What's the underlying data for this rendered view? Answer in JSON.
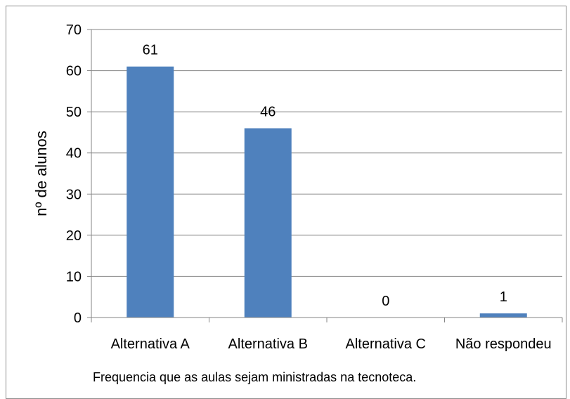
{
  "chart_data": {
    "type": "bar",
    "title": "",
    "xlabel": "",
    "ylabel": "nº de alunos",
    "caption": "Frequencia que as aulas sejam ministradas na tecnoteca.",
    "categories": [
      "Alternativa A",
      "Alternativa B",
      "Alternativa C",
      "Não respondeu"
    ],
    "values": [
      61,
      46,
      0,
      1
    ],
    "data_labels": [
      "61",
      "46",
      "0",
      "1"
    ],
    "ylim": [
      0,
      70
    ],
    "yticks": [
      0,
      10,
      20,
      30,
      40,
      50,
      60,
      70
    ],
    "grid": true,
    "legend": "none",
    "colors": {
      "bar": "#4f81bd",
      "grid": "#868686",
      "axis": "#868686"
    }
  }
}
